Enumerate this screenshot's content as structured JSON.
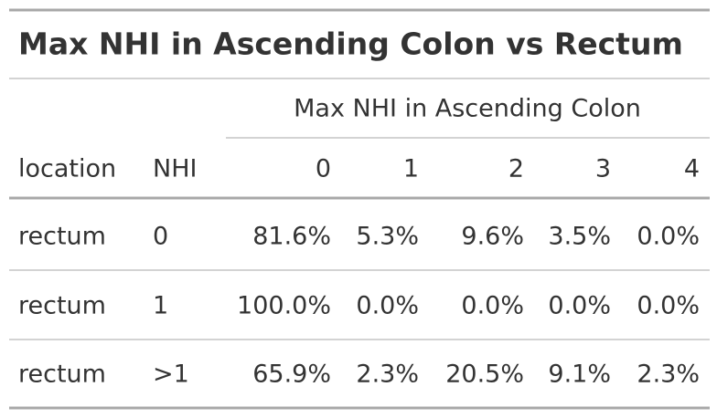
{
  "title": "Max NHI in Ascending Colon vs Rectum",
  "table": {
    "spanner": "Max NHI in Ascending Colon",
    "columns": [
      "location",
      "NHI",
      "0",
      "1",
      "2",
      "3",
      "4"
    ],
    "rows": [
      [
        "rectum",
        "0",
        "81.6%",
        "5.3%",
        "9.6%",
        "3.5%",
        "0.0%"
      ],
      [
        "rectum",
        "1",
        "100.0%",
        "0.0%",
        "0.0%",
        "0.0%",
        "0.0%"
      ],
      [
        "rectum",
        ">1",
        "65.9%",
        "2.3%",
        "20.5%",
        "9.1%",
        "2.3%"
      ]
    ]
  }
}
